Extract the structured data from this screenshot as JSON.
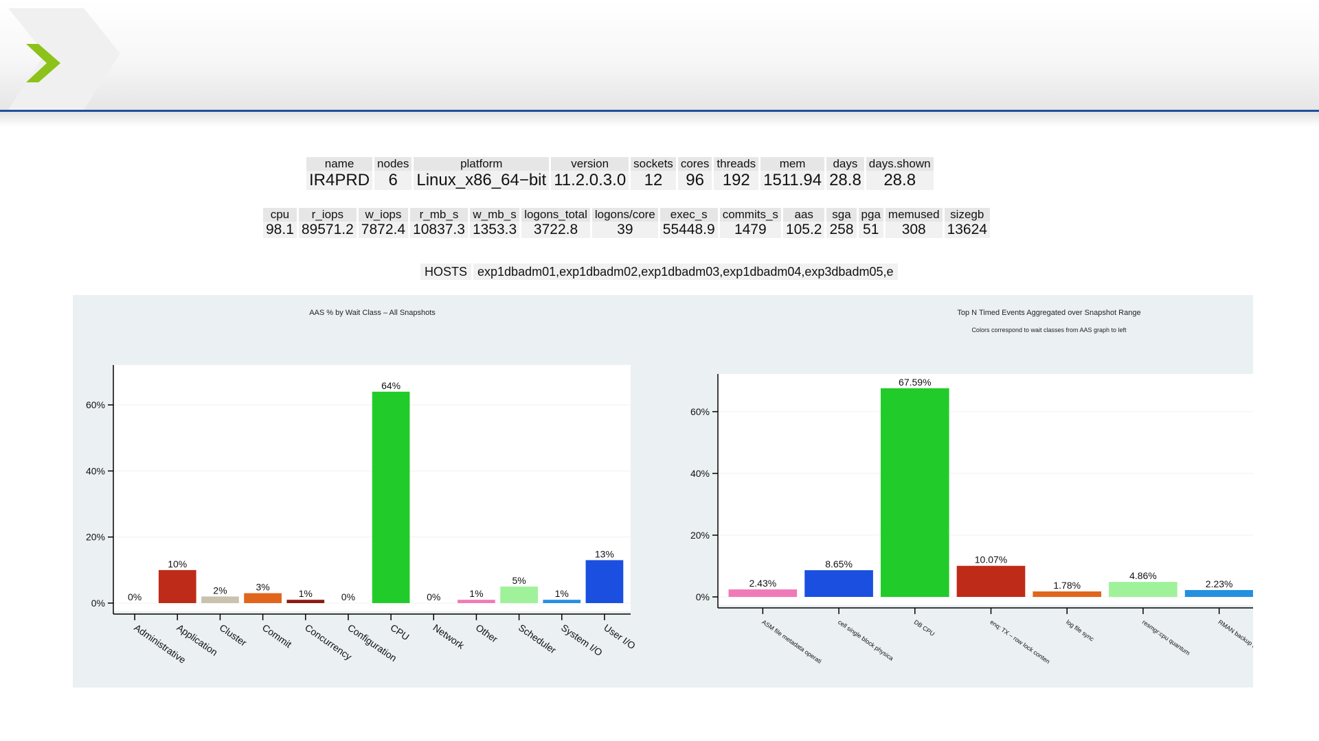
{
  "summary1": {
    "headers": [
      "name",
      "nodes",
      "platform",
      "version",
      "sockets",
      "cores",
      "threads",
      "mem",
      "days",
      "days.shown"
    ],
    "values": [
      "IR4PRD",
      "6",
      "Linux_x86_64−bit",
      "11.2.0.3.0",
      "12",
      "96",
      "192",
      "1511.94",
      "28.8",
      "28.8"
    ]
  },
  "summary2": {
    "headers": [
      "cpu",
      "r_iops",
      "w_iops",
      "r_mb_s",
      "w_mb_s",
      "logons_total",
      "logons/core",
      "exec_s",
      "commits_s",
      "aas",
      "sga",
      "pga",
      "memused",
      "sizegb"
    ],
    "values": [
      "98.1",
      "89571.2",
      "7872.4",
      "10837.3",
      "1353.3",
      "3722.8",
      "39",
      "55448.9",
      "1479",
      "105.2",
      "258",
      "51",
      "308",
      "13624"
    ]
  },
  "hosts": {
    "label": "HOSTS",
    "value": "exp1dbadm01,exp1dbadm02,exp1dbadm03,exp1dbadm04,exp3dbadm05,e"
  },
  "chart_data": [
    {
      "type": "bar",
      "title": "AAS % by Wait Class – All Snapshots",
      "xlabel": "",
      "ylabel": "",
      "ylim": [
        0,
        70
      ],
      "yticks": [
        "0%",
        "20%",
        "40%",
        "60%"
      ],
      "grid": true,
      "categories": [
        "Administrative",
        "Application",
        "Cluster",
        "Commit",
        "Concurrency",
        "Configuration",
        "CPU",
        "Network",
        "Other",
        "Scheduler",
        "System I/O",
        "User I/O"
      ],
      "values": [
        0,
        10,
        2,
        3,
        1,
        0,
        64,
        0,
        1,
        5,
        1,
        13
      ],
      "labels": [
        "0%",
        "10%",
        "2%",
        "3%",
        "1%",
        "0%",
        "64%",
        "0%",
        "1%",
        "5%",
        "1%",
        "13%"
      ],
      "colors": [
        "#999999",
        "#bf2b19",
        "#c8c2ae",
        "#e0661d",
        "#8b1a12",
        "#5a4a7a",
        "#21cc2a",
        "#a08060",
        "#f07ab8",
        "#9ff29a",
        "#2490e0",
        "#1a4fe0"
      ]
    },
    {
      "type": "bar",
      "title": "Top N Timed Events Aggregated over Snapshot Range",
      "subtitle": "Colors correspond to wait classes from AAS graph to left",
      "xlabel": "",
      "ylabel": "",
      "ylim": [
        0,
        70
      ],
      "yticks": [
        "0%",
        "20%",
        "40%",
        "60%"
      ],
      "grid": true,
      "categories": [
        "ASM file metadata operati",
        "cell single block physica",
        "DB CPU",
        "enq: TX – row lock conten",
        "log file sync",
        "resmgr:cpu quantum",
        "RMAN backup & recove"
      ],
      "values": [
        2.43,
        8.65,
        67.59,
        10.07,
        1.78,
        4.86,
        2.23
      ],
      "labels": [
        "2.43%",
        "8.65%",
        "67.59%",
        "10.07%",
        "1.78%",
        "4.86%",
        "2.23%"
      ],
      "colors": [
        "#f07ab8",
        "#1a4fe0",
        "#21cc2a",
        "#bf2b19",
        "#e0661d",
        "#9ff29a",
        "#2490e0"
      ]
    }
  ]
}
